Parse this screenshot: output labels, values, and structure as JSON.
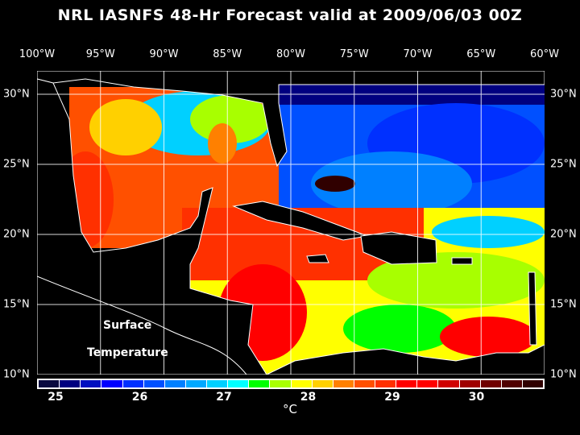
{
  "title": "NRL IASNFS  48-Hr Forecast valid at 2009/06/03 00Z",
  "lon_labels": [
    "100°W",
    "95°W",
    "90°W",
    "85°W",
    "80°W",
    "75°W",
    "70°W",
    "65°W",
    "60°W"
  ],
  "lat_labels": [
    "30°N",
    "25°N",
    "20°N",
    "15°N",
    "10°N"
  ],
  "map_labels": {
    "line1": "Surface",
    "line2": "Temperature"
  },
  "colorbar": {
    "colors": [
      "#0a0a40",
      "#000080",
      "#0010c0",
      "#0000ff",
      "#0030ff",
      "#0050ff",
      "#0080ff",
      "#00a8ff",
      "#00d0ff",
      "#00ffff",
      "#00ff00",
      "#a8ff00",
      "#ffff00",
      "#ffd000",
      "#ff8000",
      "#ff5000",
      "#ff3000",
      "#ff0000",
      "#ff0000",
      "#d00000",
      "#a00000",
      "#700000",
      "#500000",
      "#300000"
    ],
    "tick_labels": [
      "25",
      "26",
      "27",
      "28",
      "29",
      "30"
    ],
    "unit": "°C"
  }
}
